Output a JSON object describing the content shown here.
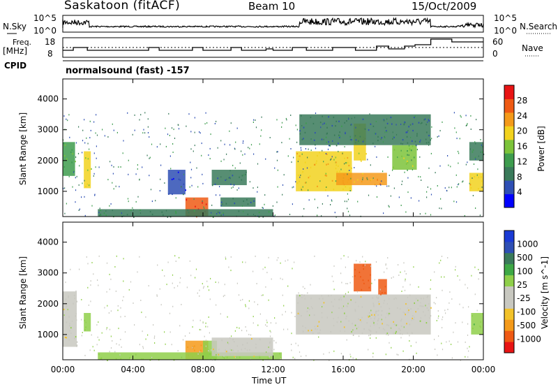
{
  "header": {
    "station": "Saskatoon (fitACF)",
    "beam": "Beam 10",
    "date": "15/Oct/2009"
  },
  "side_labels": {
    "nsky": "N.Sky",
    "freq_line1": "Freq.",
    "freq_line2": "[MHz]",
    "cpid": "CPID",
    "nsearch": "N.Search",
    "nave": "Nave"
  },
  "cpid_text": "normalsound (fast) -157",
  "colors": {
    "power_scale": [
      "#0000ff",
      "#2e4fb4",
      "#3a7a5a",
      "#3e9c4e",
      "#7cc33a",
      "#f2d21e",
      "#f49a1a",
      "#ef5a14",
      "#e81414"
    ],
    "velocity_scale": [
      "#e81414",
      "#ef5a14",
      "#f49a1a",
      "#f2c22a",
      "#c8c8c0",
      "#c8c8c0",
      "#8fcf4a",
      "#3ea845",
      "#3a7a5a",
      "#2e4fb4",
      "#1a3ad4"
    ]
  },
  "chart_data": [
    {
      "type": "line",
      "panel": "N.Sky / N.Search",
      "ylabel_left": "N.Sky",
      "ylabel_right": "N.Search",
      "yticks_left": [
        "10^5",
        "10^0"
      ],
      "yticks_right": [
        "10^5",
        "10^0"
      ],
      "x": [
        0,
        2,
        4,
        6,
        8,
        10,
        12,
        14,
        16,
        18,
        20,
        22,
        24
      ],
      "series": [
        {
          "name": "N.Sky",
          "values": [
            4.2,
            2.0,
            2.0,
            2.0,
            2.0,
            2.0,
            2.1,
            3.9,
            4.4,
            4.0,
            3.6,
            2.2,
            2.7
          ]
        }
      ]
    },
    {
      "type": "line",
      "panel": "Freq / Nave",
      "ylabel_left": "Freq. [MHz]",
      "ylabel_right": "Nave",
      "yticks_left": [
        "18",
        "8"
      ],
      "yticks_right": [
        "60",
        "0"
      ],
      "x": [
        0,
        1,
        2,
        5,
        7.5,
        10,
        12,
        14,
        16,
        18,
        20,
        22,
        24
      ],
      "series": [
        {
          "name": "Freq.",
          "values": [
            11.5,
            12.5,
            11.5,
            12.5,
            11.5,
            12.5,
            11.5,
            12.5,
            12.5,
            13,
            14.5,
            17,
            17
          ]
        },
        {
          "name": "Nave",
          "values": [
            30,
            30,
            30,
            30,
            30,
            30,
            30,
            30,
            30,
            30,
            30,
            30,
            30
          ]
        }
      ]
    },
    {
      "type": "heatmap",
      "panel": "Power",
      "ylabel": "Slant Range [km]",
      "ylim": [
        180,
        4650
      ],
      "yticks": [
        "1000",
        "2000",
        "3000",
        "4000"
      ],
      "colorbar_label": "Power [dB]",
      "colorbar_ticks": [
        "4",
        "8",
        "12",
        "16",
        "20",
        "24",
        "28"
      ],
      "regions": [
        {
          "t0": 0.0,
          "t1": 0.7,
          "r0": 1500,
          "r1": 2600,
          "value": 14
        },
        {
          "t0": 1.2,
          "t1": 1.6,
          "r0": 1100,
          "r1": 2300,
          "value": 18
        },
        {
          "t0": 7.0,
          "t1": 8.3,
          "r0": 200,
          "r1": 800,
          "value": 28
        },
        {
          "t0": 2.0,
          "t1": 12.0,
          "r0": 180,
          "r1": 420,
          "value": 10
        },
        {
          "t0": 9.0,
          "t1": 11.0,
          "r0": 500,
          "r1": 800,
          "value": 8
        },
        {
          "t0": 8.5,
          "t1": 10.5,
          "r0": 1200,
          "r1": 1700,
          "value": 8
        },
        {
          "t0": 6.0,
          "t1": 7.0,
          "r0": 900,
          "r1": 1700,
          "value": 6
        },
        {
          "t0": 13.3,
          "t1": 16.5,
          "r0": 1000,
          "r1": 2300,
          "value": 20
        },
        {
          "t0": 15.6,
          "t1": 18.5,
          "r0": 1200,
          "r1": 1600,
          "value": 22
        },
        {
          "t0": 16.6,
          "t1": 17.3,
          "r0": 2000,
          "r1": 3200,
          "value": 20
        },
        {
          "t0": 18.8,
          "t1": 20.2,
          "r0": 1700,
          "r1": 2500,
          "value": 16
        },
        {
          "t0": 13.5,
          "t1": 21.0,
          "r0": 2500,
          "r1": 3500,
          "value": 8
        },
        {
          "t0": 23.2,
          "t1": 24.0,
          "r0": 1000,
          "r1": 1600,
          "value": 20
        },
        {
          "t0": 23.2,
          "t1": 24.0,
          "r0": 2000,
          "r1": 2600,
          "value": 10
        }
      ]
    },
    {
      "type": "heatmap",
      "panel": "Velocity",
      "ylabel": "Slant Range [km]",
      "ylim": [
        180,
        4650
      ],
      "yticks": [
        "1000",
        "2000",
        "3000",
        "4000"
      ],
      "colorbar_label": "Velocity [m s^-1]",
      "colorbar_ticks": [
        "1000",
        "500",
        "100",
        "25",
        "-25",
        "-100",
        "-500",
        "-1000"
      ],
      "regions": [
        {
          "t0": 0.0,
          "t1": 0.8,
          "r0": 600,
          "r1": 2400,
          "value": 0
        },
        {
          "t0": 1.2,
          "t1": 1.6,
          "r0": 1100,
          "r1": 1700,
          "value": 80
        },
        {
          "t0": 7.0,
          "t1": 8.3,
          "r0": 200,
          "r1": 800,
          "value": -150
        },
        {
          "t0": 8.0,
          "t1": 8.8,
          "r0": 200,
          "r1": 800,
          "value": 80
        },
        {
          "t0": 2.0,
          "t1": 12.5,
          "r0": 180,
          "r1": 420,
          "value": 60
        },
        {
          "t0": 8.5,
          "t1": 12.0,
          "r0": 300,
          "r1": 900,
          "value": 0
        },
        {
          "t0": 13.3,
          "t1": 21.0,
          "r0": 1000,
          "r1": 2300,
          "value": 0
        },
        {
          "t0": 16.6,
          "t1": 17.6,
          "r0": 2400,
          "r1": 3300,
          "value": -600
        },
        {
          "t0": 18.0,
          "t1": 18.5,
          "r0": 2300,
          "r1": 2800,
          "value": -600
        },
        {
          "t0": 23.3,
          "t1": 24.0,
          "r0": 1000,
          "r1": 1700,
          "value": 80
        }
      ]
    }
  ],
  "time_axis": {
    "label": "Time UT",
    "ticks": [
      "00:00",
      "04:00",
      "08:00",
      "12:00",
      "16:00",
      "20:00",
      "00:00"
    ],
    "tick_hours": [
      0,
      4,
      8,
      12,
      16,
      20,
      24
    ]
  }
}
